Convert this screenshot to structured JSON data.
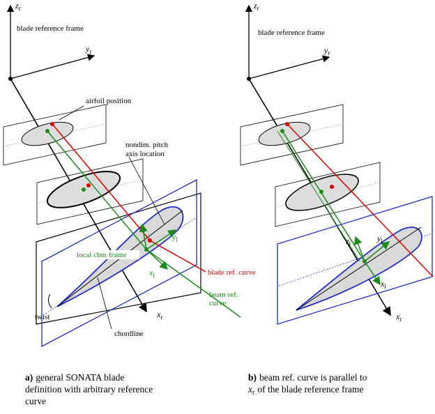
{
  "panel_a": {
    "frame_title": "blade reference frame",
    "z_r": {
      "symbol": "z",
      "subscript": "r"
    },
    "y_r": {
      "symbol": "y",
      "subscript": "r"
    },
    "x_r": {
      "symbol": "x",
      "subscript": "r"
    },
    "airfoil_position": "airfoil position",
    "pitch_axis": [
      "nondim. pitch",
      "axis location"
    ],
    "z_l": {
      "symbol": "z",
      "subscript": "l"
    },
    "y_l": {
      "symbol": "y",
      "subscript": "l"
    },
    "x_l": {
      "symbol": "x",
      "subscript": "l"
    },
    "local_frame": "local cbm frame",
    "blade_ref_curve": "blade ref. curve",
    "beam_ref_curve": [
      "beam ref.",
      "curve"
    ],
    "twist": "twist",
    "chordline": "chordline",
    "caption": {
      "label": "a)",
      "lines": [
        "general SONATA blade",
        "definition with arbitrary reference",
        "curve"
      ]
    }
  },
  "panel_b": {
    "frame_title": "blade reference frame",
    "z_r": {
      "symbol": "z",
      "subscript": "r"
    },
    "y_r": {
      "symbol": "y",
      "subscript": "r"
    },
    "x_r": {
      "symbol": "x",
      "subscript": "r"
    },
    "z_l": {
      "symbol": "z",
      "subscript": "l"
    },
    "y_l": {
      "symbol": "y",
      "subscript": "l"
    },
    "x_l": {
      "symbol": "x",
      "subscript": "l"
    },
    "caption": {
      "label": "b)",
      "line1": "beam ref. curve is parallel to",
      "symbol": "x",
      "subscript": "r",
      "line2_rest": "of the blade reference frame"
    }
  }
}
